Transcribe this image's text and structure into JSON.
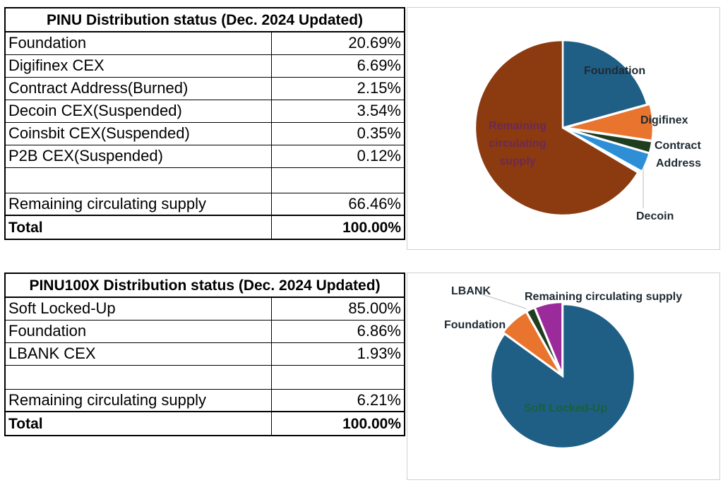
{
  "colors": {
    "foundation": "#1f5f85",
    "digifinex": "#e8742e",
    "contract": "#1f3d1f",
    "decoin": "#2e8fd6",
    "coinsbit": "#4ea63a",
    "p2b": "#1a3f66",
    "remaining1": "#8c3a10",
    "soft": "#1f5f85",
    "foundation2": "#e8742e",
    "lbank": "#1f3d1f",
    "remaining2": "#9b2a9b"
  },
  "table1": {
    "title": "PINU Distribution status (Dec. 2024 Updated)",
    "rows": [
      {
        "label": "Foundation",
        "value": "20.69%"
      },
      {
        "label": "Digifinex CEX",
        "value": "6.69%"
      },
      {
        "label": "Contract Address(Burned)",
        "value": "2.15%"
      },
      {
        "label": "Decoin CEX(Suspended)",
        "value": "3.54%"
      },
      {
        "label": "Coinsbit CEX(Suspended)",
        "value": "0.35%"
      },
      {
        "label": "P2B CEX(Suspended)",
        "value": "0.12%"
      },
      {
        "label": "",
        "value": ""
      },
      {
        "label": "Remaining circulating supply",
        "value": "66.46%"
      }
    ],
    "total_label": "Total",
    "total_value": "100.00%"
  },
  "table2": {
    "title": "PINU100X Distribution status (Dec. 2024 Updated)",
    "rows": [
      {
        "label": "Soft Locked-Up",
        "value": "85.00%"
      },
      {
        "label": "Foundation",
        "value": "6.86%"
      },
      {
        "label": "LBANK CEX",
        "value": "1.93%"
      },
      {
        "label": "",
        "value": ""
      },
      {
        "label": "Remaining circulating supply",
        "value": "6.21%"
      }
    ],
    "total_label": "Total",
    "total_value": "100.00%"
  },
  "chart_data": [
    {
      "type": "pie",
      "title": "",
      "labels": [
        "Foundation",
        "Digifinex",
        "Contract Address",
        "Decoin",
        "",
        "",
        "Remaining circulating supply"
      ],
      "values": [
        20.69,
        6.69,
        2.15,
        3.54,
        0.35,
        0.12,
        66.46
      ],
      "color_keys": [
        "foundation",
        "digifinex",
        "contract",
        "decoin",
        "coinsbit",
        "p2b",
        "remaining1"
      ],
      "legend": "none"
    },
    {
      "type": "pie",
      "title": "",
      "labels": [
        "Soft Locked-Up",
        "Foundation",
        "LBANK",
        "Remaining circulating supply"
      ],
      "values": [
        85.0,
        6.86,
        1.93,
        6.21
      ],
      "color_keys": [
        "soft",
        "foundation2",
        "lbank",
        "remaining2"
      ],
      "legend": "none"
    }
  ]
}
